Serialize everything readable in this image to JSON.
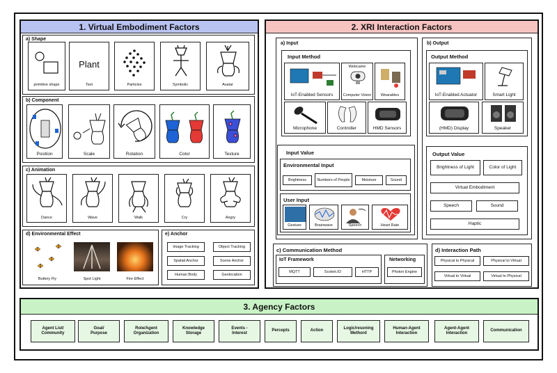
{
  "sections": {
    "ve_title": "1. Virtual Embodiment Factors",
    "xri_title": "2. XRI Interaction Factors",
    "agency_title": "3. Agency Factors"
  },
  "shape": {
    "title": "a) Shape",
    "items": [
      "primitive shape",
      "Text",
      "Particles",
      "Symbolic",
      "Avatar"
    ],
    "plant_text": "Plant"
  },
  "component": {
    "title": "b) Component",
    "items": [
      "Position",
      "Scale",
      "Rotation",
      "Color",
      "Texture"
    ]
  },
  "animation": {
    "title": "c) Animation",
    "items": [
      "Dance",
      "Wave",
      "Walk",
      "Cry",
      "Angry"
    ]
  },
  "env_effect": {
    "title": "d) Environmental Effect",
    "items": [
      "Buttery Fly",
      "Spot Light",
      "Fire Effect"
    ]
  },
  "anchor": {
    "title": "e) Anchor",
    "items": [
      "Image Tracking",
      "Object Tracking",
      "Spatial Anchor",
      "Scene Anchor",
      "Human Body",
      "Geolocation"
    ]
  },
  "input": {
    "title": "a) Input",
    "method_title": "Input Method",
    "methods": [
      "IoT-Enabled Sensors",
      "Computer Vision",
      "Wearables",
      "Microphone",
      "Controller",
      "HMD Sensors"
    ],
    "webcam_label": "Webcame",
    "value_title": "Input Value",
    "env_title": "Environmental Input",
    "env_items": [
      "Brightness",
      "Numbers of People",
      "Moisture",
      "Sound"
    ],
    "user_title": "User Input",
    "user_items": [
      "Gesture",
      "Brainwave",
      "Speech",
      "Heart Rate"
    ]
  },
  "output": {
    "title": "b) Output",
    "method_title": "Output Method",
    "methods": [
      "IoT-Enabled Actuator",
      "Smart Light",
      "(HMD) Display",
      "Speaker"
    ],
    "value_title": "Output Value",
    "values": [
      "Brightness of Light",
      "Color of Light",
      "Virtual Embodiment",
      "Speech",
      "Sound",
      "Haptic"
    ]
  },
  "communication": {
    "title": "c) Communication Method",
    "iot_title": "IoT Framework",
    "iot_items": [
      "MQTT",
      "Scoket.IO",
      "HTTP"
    ],
    "net_title": "Networking",
    "net_item": "Photon Engine"
  },
  "interaction_path": {
    "title": "d) Interaction Path",
    "items": [
      "Physical to Physical",
      "Physical to Virtual",
      "Virtual to Virtual",
      "Virtual to Physical"
    ]
  },
  "agency": {
    "items": [
      "Agent List/\nCommunity",
      "Goal/\nPurpose",
      "Role/Agent\nOrganization",
      "Knowledge\nStorage",
      "Events -\nInterest",
      "Percepts",
      "Action",
      "Logic/resoning\nMethord",
      "Human-Agent\nInteraction",
      "Agent-Agent\nInteraction",
      "Communication"
    ]
  },
  "colors": {
    "ve_header": "#b9c3f2",
    "xri_header": "#f7c3c0",
    "agency_header": "#c9f3c6",
    "agency_item": "#e6f7e4",
    "heart": "#e53935",
    "robot_blue": "#1e63d6",
    "robot_red": "#e53935"
  }
}
